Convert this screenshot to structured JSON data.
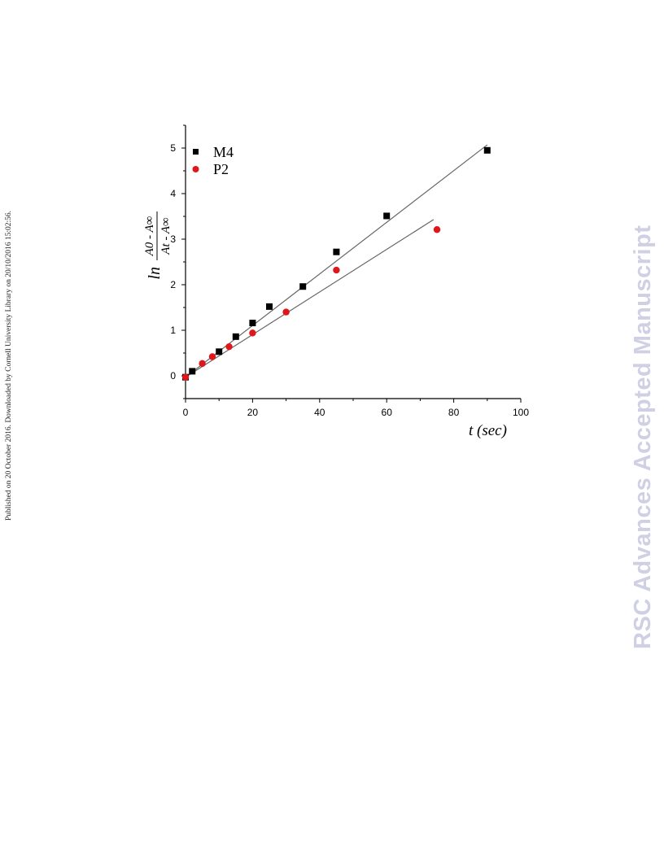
{
  "side_note": "Published on 20 October 2016. Downloaded by Cornell University Library on 20/10/2016 15:02:56.",
  "watermark": "RSC Advances Accepted Manuscript",
  "chart_data": {
    "type": "scatter",
    "xlabel": "t (sec)",
    "ylabel": {
      "prefix": "ln",
      "numerator": "A0 - A∞",
      "denominator": "At - A∞"
    },
    "xlim": [
      0,
      100
    ],
    "ylim": [
      -0.5,
      5.5
    ],
    "x_ticks": [
      0,
      20,
      40,
      60,
      80,
      100
    ],
    "y_ticks": [
      0,
      1,
      2,
      3,
      4,
      5
    ],
    "grid": false,
    "legend_position": "top-left",
    "series": [
      {
        "name": "M4",
        "marker": "square",
        "color": "#000000",
        "points": [
          [
            0,
            -0.03
          ],
          [
            2,
            0.1
          ],
          [
            10,
            0.53
          ],
          [
            15,
            0.86
          ],
          [
            20,
            1.16
          ],
          [
            25,
            1.52
          ],
          [
            35,
            1.96
          ],
          [
            45,
            2.72
          ],
          [
            60,
            3.51
          ],
          [
            90,
            4.95
          ]
        ],
        "fit": [
          [
            0,
            -0.03
          ],
          [
            90,
            5.07
          ]
        ]
      },
      {
        "name": "P2",
        "marker": "circle",
        "color": "#e0161d",
        "points": [
          [
            0,
            -0.03
          ],
          [
            5,
            0.27
          ],
          [
            8,
            0.42
          ],
          [
            13,
            0.64
          ],
          [
            20,
            0.94
          ],
          [
            30,
            1.4
          ],
          [
            45,
            2.32
          ],
          [
            75,
            3.21
          ]
        ],
        "fit": [
          [
            0,
            -0.03
          ],
          [
            74,
            3.43
          ]
        ]
      }
    ]
  }
}
